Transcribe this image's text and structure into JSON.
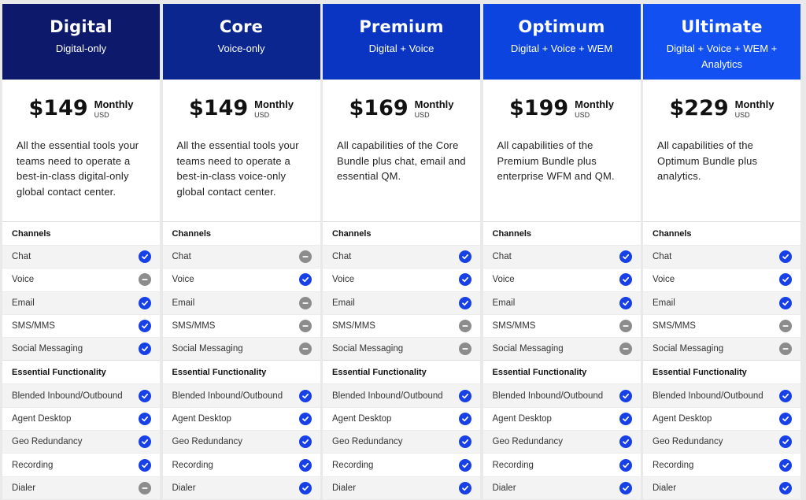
{
  "labels": {
    "period": "Monthly",
    "currency": "USD",
    "section_channels": "Channels",
    "section_essential": "Essential Functionality"
  },
  "channel_features": [
    "Chat",
    "Voice",
    "Email",
    "SMS/MMS",
    "Social Messaging"
  ],
  "essential_features": [
    "Blended Inbound/Outbound",
    "Agent Desktop",
    "Geo Redundancy",
    "Recording",
    "Dialer"
  ],
  "icon_names": {
    "included": "check-circle-icon",
    "excluded": "minus-circle-icon"
  },
  "plans": [
    {
      "name": "Digital",
      "subtitle": "Digital-only",
      "price": "$149",
      "header_color": "#0d1a6b",
      "description": "All the essential tools your teams need to operate a best-in-class digital-only global contact center.",
      "channels": [
        true,
        false,
        true,
        true,
        true
      ],
      "essential": [
        true,
        true,
        true,
        true,
        false
      ]
    },
    {
      "name": "Core",
      "subtitle": "Voice-only",
      "price": "$149",
      "header_color": "#0c2690",
      "description": "All the essential tools your teams need to operate a best-in-class voice-only global contact center.",
      "channels": [
        false,
        true,
        false,
        false,
        false
      ],
      "essential": [
        true,
        true,
        true,
        true,
        true
      ]
    },
    {
      "name": "Premium",
      "subtitle": "Digital + Voice",
      "price": "$169",
      "header_color": "#0a35c2",
      "description": "All capabilities of the Core Bundle plus chat, email and essential QM.",
      "channels": [
        true,
        true,
        true,
        false,
        false
      ],
      "essential": [
        true,
        true,
        true,
        true,
        true
      ]
    },
    {
      "name": "Optimum",
      "subtitle": "Digital + Voice + WEM",
      "price": "$199",
      "header_color": "#0c44e0",
      "description": "All capabilities of the Premium Bundle plus enterprise WFM and QM.",
      "channels": [
        true,
        true,
        true,
        false,
        false
      ],
      "essential": [
        true,
        true,
        true,
        true,
        true
      ]
    },
    {
      "name": "Ultimate",
      "subtitle": "Digital + Voice + WEM + Analytics",
      "price": "$229",
      "header_color": "#1250f2",
      "description": "All capabilities of the Optimum Bundle plus analytics.",
      "channels": [
        true,
        true,
        true,
        false,
        false
      ],
      "essential": [
        true,
        true,
        true,
        true,
        true
      ]
    }
  ]
}
